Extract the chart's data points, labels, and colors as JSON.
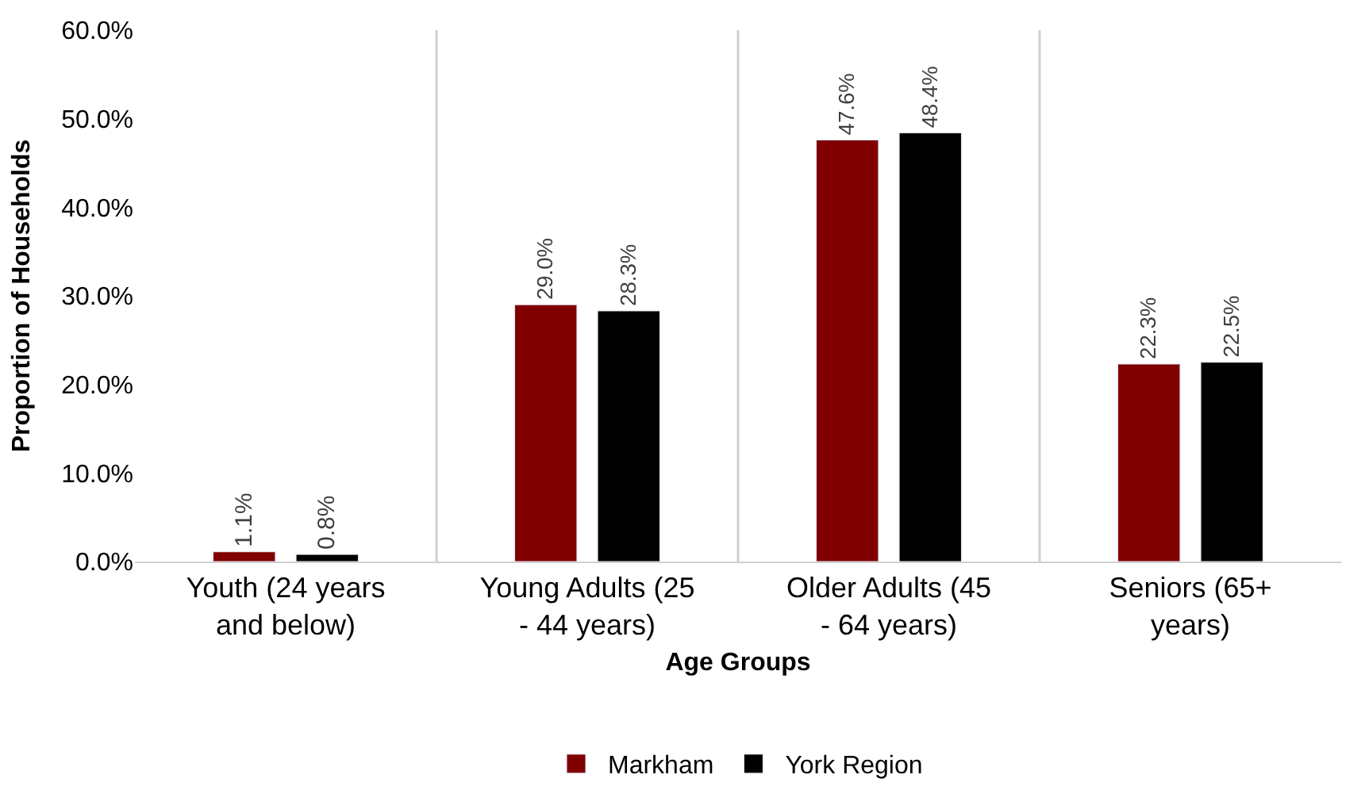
{
  "chart_data": {
    "type": "bar",
    "xlabel": "Age Groups",
    "ylabel": "Proportion of Households",
    "categories": [
      "Youth (24 years and below)",
      "Young Adults (25 - 44 years)",
      "Older Adults (45 - 64 years)",
      "Seniors (65+ years)"
    ],
    "series": [
      {
        "name": "Markham",
        "color": "#800000",
        "values": [
          1.1,
          29.0,
          47.6,
          22.3
        ],
        "value_labels": [
          "1.1%",
          "29.0%",
          "47.6%",
          "22.3%"
        ]
      },
      {
        "name": "York Region",
        "color": "#000000",
        "values": [
          0.8,
          28.3,
          48.4,
          22.5
        ],
        "value_labels": [
          "0.8%",
          "28.3%",
          "48.4%",
          "22.5%"
        ]
      }
    ],
    "ylim": [
      0,
      60
    ],
    "yticks": [
      {
        "value": 0,
        "label": "0.0%"
      },
      {
        "value": 10,
        "label": "10.0%"
      },
      {
        "value": 20,
        "label": "20.0%"
      },
      {
        "value": 30,
        "label": "30.0%"
      },
      {
        "value": 40,
        "label": "40.0%"
      },
      {
        "value": 50,
        "label": "50.0%"
      },
      {
        "value": 60,
        "label": "60.0%"
      }
    ],
    "grid": "x",
    "legend": "bottom"
  }
}
